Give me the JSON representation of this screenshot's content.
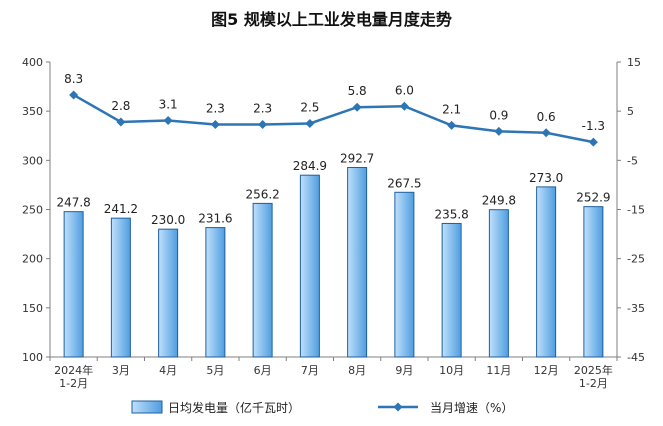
{
  "chart_data": {
    "type": "bar+line",
    "title": "图5  规模以上工业发电量月度走势",
    "categories": [
      [
        "2024年",
        "1-2月"
      ],
      [
        "3月"
      ],
      [
        "4月"
      ],
      [
        "5月"
      ],
      [
        "6月"
      ],
      [
        "7月"
      ],
      [
        "8月"
      ],
      [
        "9月"
      ],
      [
        "10月"
      ],
      [
        "11月"
      ],
      [
        "12月"
      ],
      [
        "2025年",
        "1-2月"
      ]
    ],
    "series": [
      {
        "name": "日均发电量（亿千瓦时）",
        "type": "bar",
        "axis": "left",
        "values": [
          247.8,
          241.2,
          230.0,
          231.6,
          256.2,
          284.9,
          292.7,
          267.5,
          235.8,
          249.8,
          273.0,
          252.9
        ],
        "labels": [
          "247.8",
          "241.2",
          "230.0",
          "231.6",
          "256.2",
          "284.9",
          "292.7",
          "267.5",
          "235.8",
          "249.8",
          "273.0",
          "252.9"
        ]
      },
      {
        "name": "当月增速（%）",
        "type": "line",
        "axis": "right",
        "values": [
          8.3,
          2.8,
          3.1,
          2.3,
          2.3,
          2.5,
          5.8,
          6.0,
          2.1,
          0.9,
          0.6,
          -1.3
        ],
        "labels": [
          "8.3",
          "2.8",
          "3.1",
          "2.3",
          "2.3",
          "2.5",
          "5.8",
          "6.0",
          "2.1",
          "0.9",
          "0.6",
          "-1.3"
        ]
      }
    ],
    "y_left": {
      "ylim": [
        100,
        400
      ],
      "ticks": [
        "100",
        "150",
        "200",
        "250",
        "300",
        "350",
        "400"
      ]
    },
    "y_right": {
      "ylim": [
        -45,
        15
      ],
      "ticks": [
        "-45",
        "-35",
        "-25",
        "-15",
        "-5",
        "5",
        "15"
      ]
    },
    "grid": false,
    "legend": "bottom",
    "colors": {
      "bar_fill_top": "#bfe0fb",
      "bar_fill_bottom": "#4f9de0",
      "bar_stroke": "#1f5f9e",
      "line": "#2e75b6",
      "axis": "#7f7f7f"
    }
  }
}
